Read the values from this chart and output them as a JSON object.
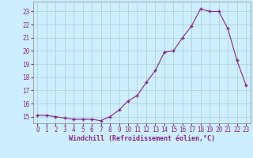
{
  "x": [
    0,
    1,
    2,
    3,
    4,
    5,
    6,
    7,
    8,
    9,
    10,
    11,
    12,
    13,
    14,
    15,
    16,
    17,
    18,
    19,
    20,
    21,
    22,
    23
  ],
  "y": [
    15.1,
    15.1,
    15.0,
    14.9,
    14.8,
    14.8,
    14.8,
    14.7,
    15.0,
    15.5,
    16.2,
    16.6,
    17.6,
    18.5,
    19.9,
    20.0,
    21.0,
    21.9,
    23.2,
    23.0,
    23.0,
    21.7,
    19.3,
    17.4
  ],
  "line_color": "#882288",
  "marker": "+",
  "marker_size": 3,
  "marker_linewidth": 1.0,
  "bg_color": "#cceeff",
  "grid_color": "#aacccc",
  "xlabel": "Windchill (Refroidissement éolien,°C)",
  "ylim": [
    14.5,
    23.75
  ],
  "xlim": [
    -0.5,
    23.5
  ],
  "yticks": [
    15,
    16,
    17,
    18,
    19,
    20,
    21,
    22,
    23
  ],
  "xticks": [
    0,
    1,
    2,
    3,
    4,
    5,
    6,
    7,
    8,
    9,
    10,
    11,
    12,
    13,
    14,
    15,
    16,
    17,
    18,
    19,
    20,
    21,
    22,
    23
  ],
  "tick_fontsize": 5.5,
  "xlabel_fontsize": 6.0,
  "linewidth": 0.8
}
